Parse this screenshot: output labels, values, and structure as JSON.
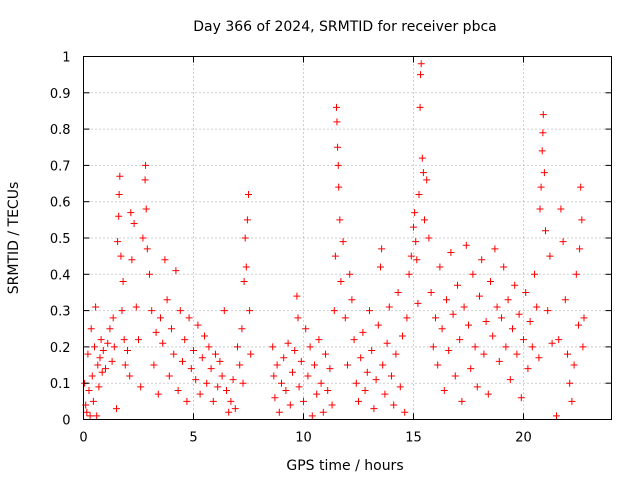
{
  "chart_data": {
    "type": "scatter",
    "title": "Day 366 of 2024, SRMTID for receiver pbca",
    "xlabel": "GPS time / hours",
    "ylabel": "SRMTID / TECUs",
    "xlim": [
      0,
      24
    ],
    "ylim": [
      0,
      1
    ],
    "xticks": [
      0,
      5,
      10,
      15,
      20
    ],
    "xtick_labels": [
      "0",
      "5",
      "10",
      "15",
      "20"
    ],
    "yticks": [
      0,
      0.1,
      0.2,
      0.3,
      0.4,
      0.5,
      0.6,
      0.7,
      0.8,
      0.9,
      1
    ],
    "ytick_labels": [
      "0",
      "0.1",
      "0.2",
      "0.3",
      "0.4",
      "0.5",
      "0.6",
      "0.7",
      "0.8",
      "0.9",
      "1"
    ],
    "grid": true,
    "marker": "plus",
    "color": "#ff0000",
    "series": [
      {
        "name": "SRMTID",
        "points": [
          [
            0.05,
            0.1
          ],
          [
            0.1,
            0.04
          ],
          [
            0.15,
            0.02
          ],
          [
            0.2,
            0.18
          ],
          [
            0.25,
            0.08
          ],
          [
            0.3,
            0.01
          ],
          [
            0.35,
            0.25
          ],
          [
            0.4,
            0.12
          ],
          [
            0.45,
            0.05
          ],
          [
            0.5,
            0.2
          ],
          [
            0.55,
            0.31
          ],
          [
            0.6,
            0.01
          ],
          [
            0.65,
            0.15
          ],
          [
            0.7,
            0.09
          ],
          [
            0.75,
            0.17
          ],
          [
            0.8,
            0.22
          ],
          [
            0.85,
            0.13
          ],
          [
            0.9,
            0.19
          ],
          [
            1.0,
            0.14
          ],
          [
            1.1,
            0.21
          ],
          [
            1.2,
            0.25
          ],
          [
            1.3,
            0.16
          ],
          [
            1.35,
            0.28
          ],
          [
            1.4,
            0.2
          ],
          [
            1.5,
            0.03
          ],
          [
            1.55,
            0.49
          ],
          [
            1.6,
            0.56
          ],
          [
            1.62,
            0.62
          ],
          [
            1.65,
            0.67
          ],
          [
            1.7,
            0.45
          ],
          [
            1.75,
            0.3
          ],
          [
            1.8,
            0.38
          ],
          [
            1.85,
            0.22
          ],
          [
            1.9,
            0.15
          ],
          [
            2.0,
            0.19
          ],
          [
            2.1,
            0.12
          ],
          [
            2.15,
            0.57
          ],
          [
            2.2,
            0.44
          ],
          [
            2.3,
            0.54
          ],
          [
            2.4,
            0.31
          ],
          [
            2.5,
            0.22
          ],
          [
            2.6,
            0.09
          ],
          [
            2.7,
            0.5
          ],
          [
            2.8,
            0.66
          ],
          [
            2.82,
            0.7
          ],
          [
            2.85,
            0.58
          ],
          [
            2.9,
            0.47
          ],
          [
            3.0,
            0.4
          ],
          [
            3.1,
            0.3
          ],
          [
            3.2,
            0.15
          ],
          [
            3.3,
            0.24
          ],
          [
            3.4,
            0.07
          ],
          [
            3.5,
            0.28
          ],
          [
            3.6,
            0.21
          ],
          [
            3.7,
            0.44
          ],
          [
            3.8,
            0.33
          ],
          [
            3.9,
            0.12
          ],
          [
            4.0,
            0.25
          ],
          [
            4.1,
            0.18
          ],
          [
            4.2,
            0.41
          ],
          [
            4.3,
            0.08
          ],
          [
            4.4,
            0.3
          ],
          [
            4.5,
            0.16
          ],
          [
            4.6,
            0.22
          ],
          [
            4.7,
            0.05
          ],
          [
            4.8,
            0.28
          ],
          [
            4.9,
            0.14
          ],
          [
            5.0,
            0.19
          ],
          [
            5.1,
            0.11
          ],
          [
            5.2,
            0.26
          ],
          [
            5.3,
            0.07
          ],
          [
            5.4,
            0.17
          ],
          [
            5.5,
            0.23
          ],
          [
            5.6,
            0.1
          ],
          [
            5.7,
            0.2
          ],
          [
            5.8,
            0.14
          ],
          [
            5.9,
            0.05
          ],
          [
            6.0,
            0.18
          ],
          [
            6.1,
            0.09
          ],
          [
            6.2,
            0.16
          ],
          [
            6.3,
            0.12
          ],
          [
            6.4,
            0.3
          ],
          [
            6.5,
            0.08
          ],
          [
            6.6,
            0.02
          ],
          [
            6.7,
            0.05
          ],
          [
            6.8,
            0.11
          ],
          [
            6.9,
            0.03
          ],
          [
            7.0,
            0.2
          ],
          [
            7.1,
            0.15
          ],
          [
            7.2,
            0.25
          ],
          [
            7.25,
            0.1
          ],
          [
            7.3,
            0.38
          ],
          [
            7.35,
            0.5
          ],
          [
            7.4,
            0.42
          ],
          [
            7.45,
            0.55
          ],
          [
            7.5,
            0.62
          ],
          [
            7.55,
            0.3
          ],
          [
            7.6,
            0.18
          ],
          [
            8.6,
            0.2
          ],
          [
            8.65,
            0.12
          ],
          [
            8.7,
            0.06
          ],
          [
            8.8,
            0.15
          ],
          [
            8.9,
            0.02
          ],
          [
            9.0,
            0.1
          ],
          [
            9.1,
            0.17
          ],
          [
            9.2,
            0.08
          ],
          [
            9.3,
            0.21
          ],
          [
            9.4,
            0.04
          ],
          [
            9.5,
            0.13
          ],
          [
            9.6,
            0.19
          ],
          [
            9.7,
            0.34
          ],
          [
            9.75,
            0.28
          ],
          [
            9.8,
            0.09
          ],
          [
            9.9,
            0.16
          ],
          [
            10.0,
            0.05
          ],
          [
            10.1,
            0.25
          ],
          [
            10.2,
            0.12
          ],
          [
            10.3,
            0.2
          ],
          [
            10.4,
            0.01
          ],
          [
            10.5,
            0.15
          ],
          [
            10.6,
            0.07
          ],
          [
            10.7,
            0.22
          ],
          [
            10.8,
            0.1
          ],
          [
            10.9,
            0.02
          ],
          [
            11.0,
            0.18
          ],
          [
            11.1,
            0.08
          ],
          [
            11.2,
            0.14
          ],
          [
            11.3,
            0.04
          ],
          [
            11.4,
            0.3
          ],
          [
            11.45,
            0.45
          ],
          [
            11.5,
            0.86
          ],
          [
            11.52,
            0.82
          ],
          [
            11.55,
            0.75
          ],
          [
            11.58,
            0.7
          ],
          [
            11.6,
            0.64
          ],
          [
            11.65,
            0.55
          ],
          [
            11.7,
            0.38
          ],
          [
            11.8,
            0.49
          ],
          [
            11.9,
            0.28
          ],
          [
            12.0,
            0.15
          ],
          [
            12.1,
            0.4
          ],
          [
            12.2,
            0.33
          ],
          [
            12.3,
            0.22
          ],
          [
            12.4,
            0.1
          ],
          [
            12.5,
            0.05
          ],
          [
            12.6,
            0.17
          ],
          [
            12.7,
            0.24
          ],
          [
            12.8,
            0.08
          ],
          [
            12.9,
            0.13
          ],
          [
            13.0,
            0.3
          ],
          [
            13.1,
            0.19
          ],
          [
            13.2,
            0.03
          ],
          [
            13.3,
            0.11
          ],
          [
            13.4,
            0.26
          ],
          [
            13.5,
            0.42
          ],
          [
            13.55,
            0.47
          ],
          [
            13.6,
            0.15
          ],
          [
            13.7,
            0.07
          ],
          [
            13.8,
            0.21
          ],
          [
            13.9,
            0.31
          ],
          [
            14.0,
            0.12
          ],
          [
            14.1,
            0.04
          ],
          [
            14.2,
            0.18
          ],
          [
            14.3,
            0.35
          ],
          [
            14.4,
            0.09
          ],
          [
            14.5,
            0.23
          ],
          [
            14.6,
            0.02
          ],
          [
            14.7,
            0.28
          ],
          [
            14.8,
            0.4
          ],
          [
            14.9,
            0.45
          ],
          [
            15.0,
            0.53
          ],
          [
            15.05,
            0.57
          ],
          [
            15.1,
            0.49
          ],
          [
            15.15,
            0.44
          ],
          [
            15.2,
            0.32
          ],
          [
            15.25,
            0.62
          ],
          [
            15.3,
            0.86
          ],
          [
            15.32,
            0.95
          ],
          [
            15.35,
            0.98
          ],
          [
            15.4,
            0.72
          ],
          [
            15.45,
            0.68
          ],
          [
            15.5,
            0.55
          ],
          [
            15.6,
            0.66
          ],
          [
            15.7,
            0.5
          ],
          [
            15.8,
            0.35
          ],
          [
            15.9,
            0.2
          ],
          [
            16.0,
            0.28
          ],
          [
            16.1,
            0.15
          ],
          [
            16.2,
            0.42
          ],
          [
            16.3,
            0.25
          ],
          [
            16.4,
            0.08
          ],
          [
            16.5,
            0.33
          ],
          [
            16.6,
            0.19
          ],
          [
            16.7,
            0.46
          ],
          [
            16.8,
            0.29
          ],
          [
            16.9,
            0.12
          ],
          [
            17.0,
            0.37
          ],
          [
            17.1,
            0.22
          ],
          [
            17.2,
            0.05
          ],
          [
            17.3,
            0.31
          ],
          [
            17.4,
            0.48
          ],
          [
            17.5,
            0.26
          ],
          [
            17.6,
            0.14
          ],
          [
            17.7,
            0.4
          ],
          [
            17.8,
            0.2
          ],
          [
            17.9,
            0.09
          ],
          [
            18.0,
            0.34
          ],
          [
            18.1,
            0.44
          ],
          [
            18.2,
            0.18
          ],
          [
            18.3,
            0.27
          ],
          [
            18.4,
            0.07
          ],
          [
            18.5,
            0.38
          ],
          [
            18.6,
            0.23
          ],
          [
            18.7,
            0.47
          ],
          [
            18.8,
            0.31
          ],
          [
            18.9,
            0.16
          ],
          [
            19.0,
            0.28
          ],
          [
            19.1,
            0.42
          ],
          [
            19.2,
            0.2
          ],
          [
            19.3,
            0.33
          ],
          [
            19.4,
            0.11
          ],
          [
            19.5,
            0.25
          ],
          [
            19.6,
            0.37
          ],
          [
            19.7,
            0.18
          ],
          [
            19.8,
            0.29
          ],
          [
            19.9,
            0.06
          ],
          [
            20.0,
            0.22
          ],
          [
            20.1,
            0.35
          ],
          [
            20.2,
            0.14
          ],
          [
            20.3,
            0.27
          ],
          [
            20.4,
            0.2
          ],
          [
            20.5,
            0.4
          ],
          [
            20.6,
            0.31
          ],
          [
            20.7,
            0.17
          ],
          [
            20.75,
            0.58
          ],
          [
            20.8,
            0.64
          ],
          [
            20.85,
            0.74
          ],
          [
            20.88,
            0.79
          ],
          [
            20.9,
            0.84
          ],
          [
            20.95,
            0.68
          ],
          [
            21.0,
            0.52
          ],
          [
            21.1,
            0.3
          ],
          [
            21.2,
            0.45
          ],
          [
            21.3,
            0.21
          ],
          [
            21.5,
            0.01
          ],
          [
            21.6,
            0.22
          ],
          [
            21.7,
            0.58
          ],
          [
            21.8,
            0.49
          ],
          [
            21.9,
            0.33
          ],
          [
            22.0,
            0.18
          ],
          [
            22.1,
            0.1
          ],
          [
            22.2,
            0.05
          ],
          [
            22.3,
            0.15
          ],
          [
            22.4,
            0.4
          ],
          [
            22.5,
            0.26
          ],
          [
            22.55,
            0.47
          ],
          [
            22.6,
            0.64
          ],
          [
            22.65,
            0.55
          ],
          [
            22.7,
            0.2
          ],
          [
            22.75,
            0.28
          ]
        ]
      }
    ]
  }
}
